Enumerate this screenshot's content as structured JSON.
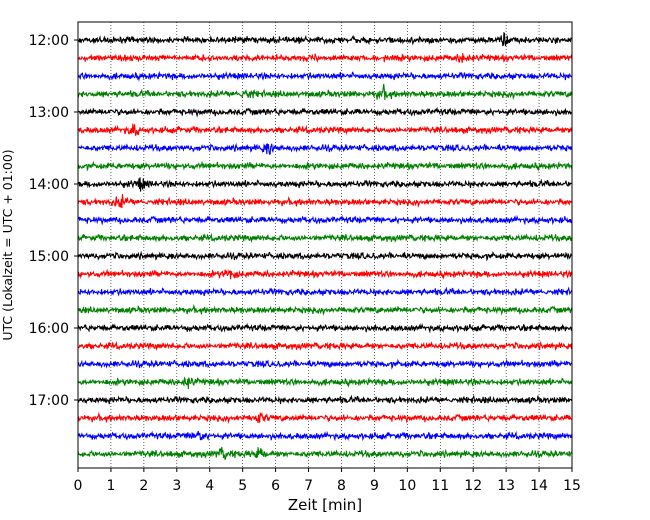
{
  "chart_data": {
    "type": "line",
    "subtype": "helicorder seismogram",
    "title": "",
    "xlabel": "Zeit  [min]",
    "ylabel": "UTC (Lokalzeit = UTC + 01:00)",
    "xlim": [
      0,
      15
    ],
    "x_ticks": [
      "0",
      "1",
      "2",
      "3",
      "4",
      "5",
      "6",
      "7",
      "8",
      "9",
      "10",
      "11",
      "12",
      "13",
      "14",
      "15"
    ],
    "y_tick_labels": [
      "12:00",
      "13:00",
      "14:00",
      "15:00",
      "16:00",
      "17:00"
    ],
    "grid": "vertical dotted lines at each minute",
    "trace_interval_minutes": 15,
    "color_cycle": [
      "#000000",
      "#ff0000",
      "#0000ff",
      "#008000"
    ],
    "traces": [
      {
        "start": "12:00",
        "events_min": [
          12.95
        ]
      },
      {
        "start": "12:15",
        "events_min": [
          11.7
        ]
      },
      {
        "start": "12:30",
        "events_min": []
      },
      {
        "start": "12:45",
        "events_min": [
          5.1,
          9.25
        ]
      },
      {
        "start": "13:00",
        "events_min": []
      },
      {
        "start": "13:15",
        "events_min": [
          1.7
        ]
      },
      {
        "start": "13:30",
        "events_min": [
          5.8
        ]
      },
      {
        "start": "13:45",
        "events_min": []
      },
      {
        "start": "14:00",
        "events_min": [
          1.9
        ]
      },
      {
        "start": "14:15",
        "events_min": [
          1.3
        ]
      },
      {
        "start": "14:30",
        "events_min": []
      },
      {
        "start": "14:45",
        "events_min": []
      },
      {
        "start": "15:00",
        "events_min": []
      },
      {
        "start": "15:15",
        "events_min": [
          4.6
        ]
      },
      {
        "start": "15:30",
        "events_min": []
      },
      {
        "start": "15:45",
        "events_min": []
      },
      {
        "start": "16:00",
        "events_min": []
      },
      {
        "start": "16:15",
        "events_min": []
      },
      {
        "start": "16:30",
        "events_min": []
      },
      {
        "start": "16:45",
        "events_min": [
          3.3
        ]
      },
      {
        "start": "17:00",
        "events_min": []
      },
      {
        "start": "17:15",
        "events_min": [
          5.5
        ]
      },
      {
        "start": "17:30",
        "events_min": [
          3.65
        ]
      },
      {
        "start": "17:45",
        "events_min": [
          4.4,
          5.5
        ]
      }
    ]
  }
}
